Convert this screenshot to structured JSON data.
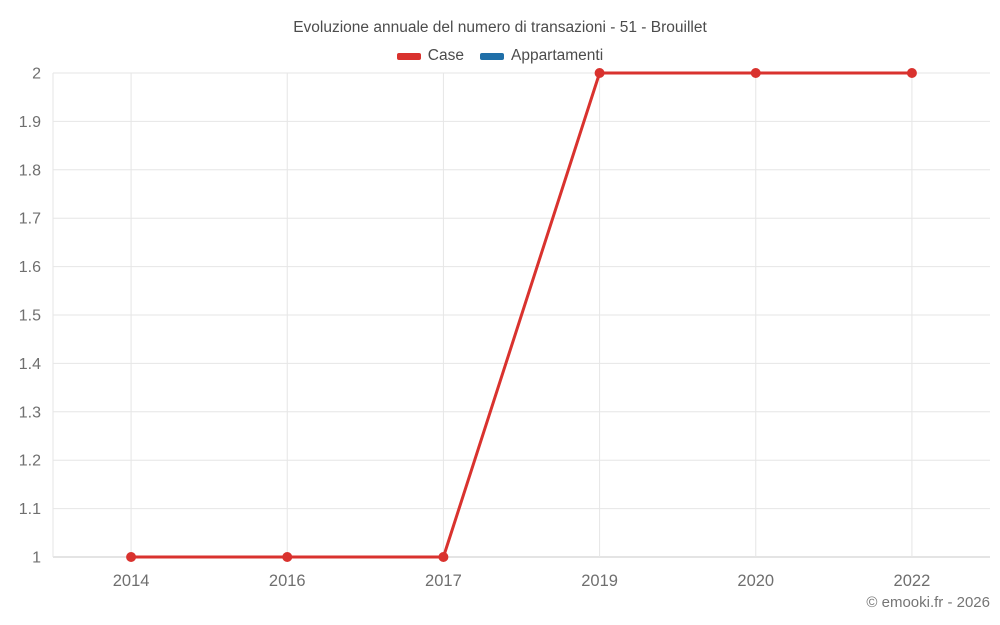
{
  "chart_data": {
    "type": "line",
    "title": "Evoluzione annuale del numero di transazioni - 51 - Brouillet",
    "categories": [
      "2014",
      "2016",
      "2017",
      "2019",
      "2020",
      "2022"
    ],
    "series": [
      {
        "name": "Case",
        "color": "#d9322e",
        "values": [
          1,
          1,
          1,
          2,
          2,
          2
        ]
      },
      {
        "name": "Appartamenti",
        "color": "#1f6fa8",
        "values": []
      }
    ],
    "xlabel": "",
    "ylabel": "",
    "ylim": [
      1,
      2
    ],
    "yticks": [
      "1",
      "1.1",
      "1.2",
      "1.3",
      "1.4",
      "1.5",
      "1.6",
      "1.7",
      "1.8",
      "1.9",
      "2"
    ],
    "grid": true,
    "legend_position": "top"
  },
  "footer": {
    "copyright": "© emooki.fr - 2026"
  },
  "colors": {
    "background": "#ffffff",
    "title_text": "#4c4c4c",
    "axis_text": "#6f6f6f",
    "gridline": "#e6e6e6",
    "baseline": "#c9c9c9"
  }
}
